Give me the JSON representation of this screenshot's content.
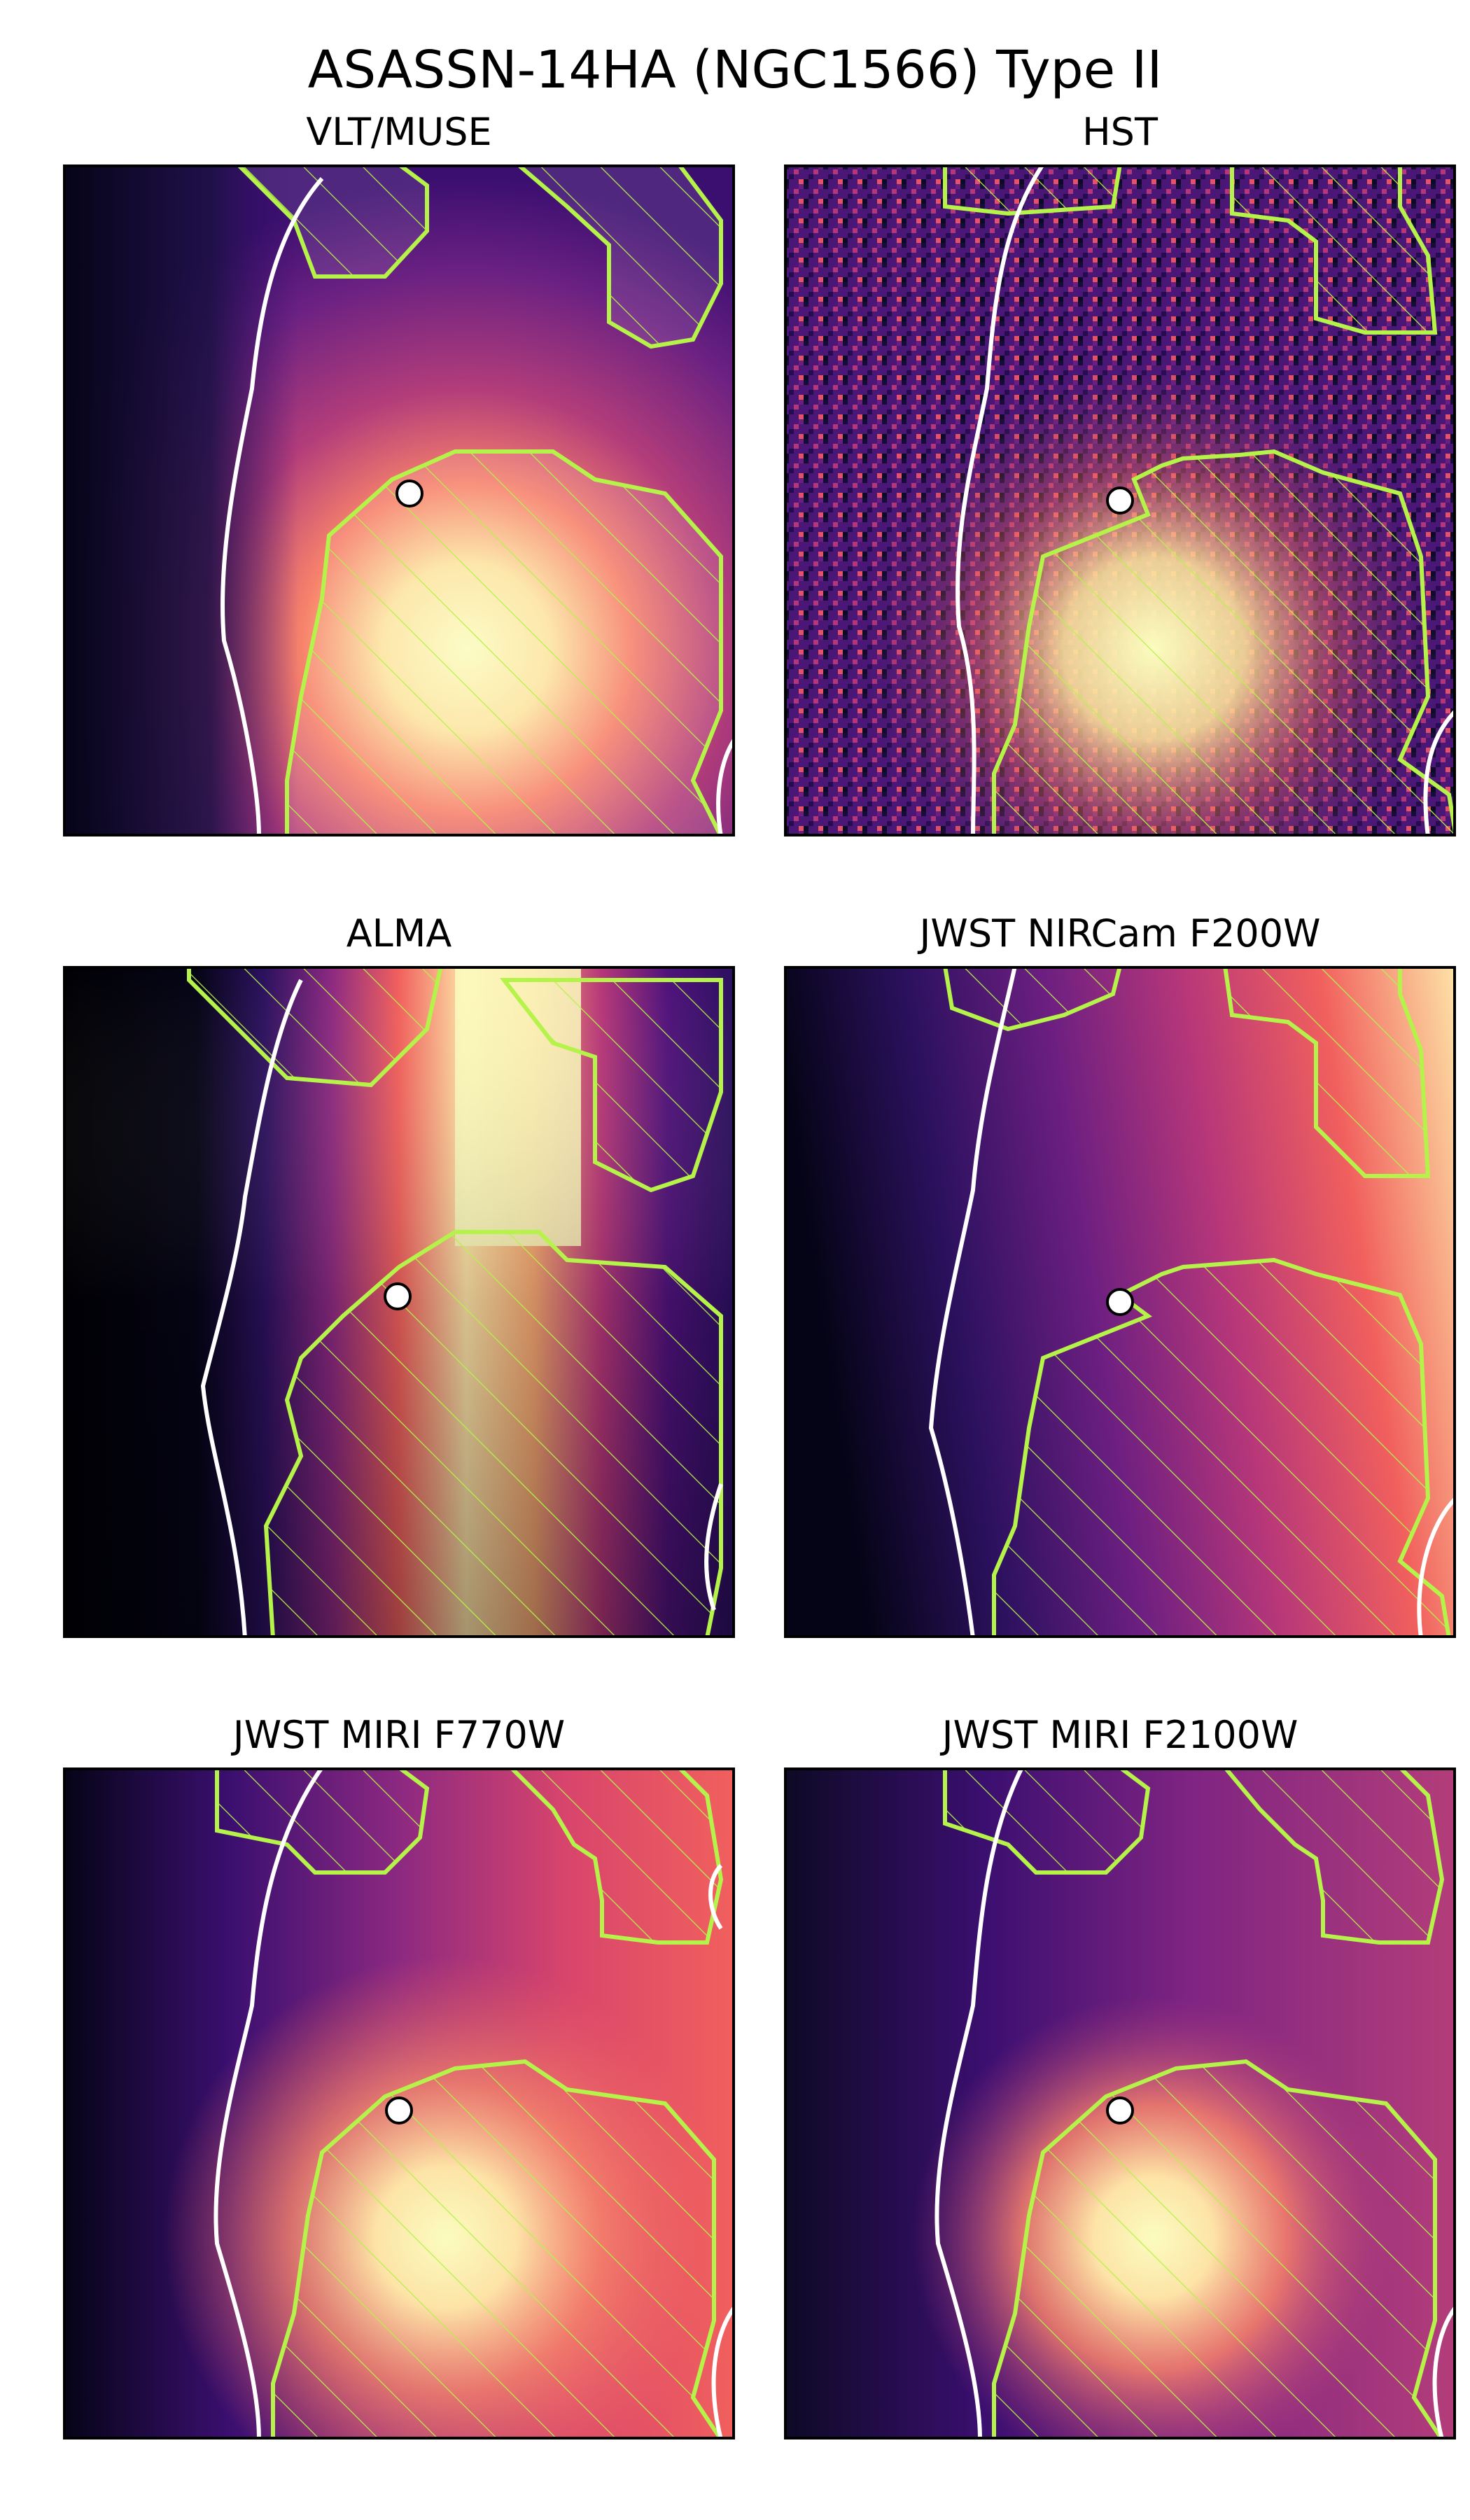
{
  "figure": {
    "title": "ASASSN-14HA (NGC1566) Type II",
    "colors": {
      "overlay": "#b5f24a",
      "contour": "#ffffff",
      "marker_fill": "#ffffff",
      "marker_edge": "#000000",
      "colormap": "magma"
    }
  },
  "panels": [
    {
      "title": "VLT/MUSE"
    },
    {
      "title": "HST"
    },
    {
      "title": "ALMA"
    },
    {
      "title": "JWST NIRCam F200W"
    },
    {
      "title": "JWST MIRI F770W"
    },
    {
      "title": "JWST MIRI F2100W"
    }
  ]
}
